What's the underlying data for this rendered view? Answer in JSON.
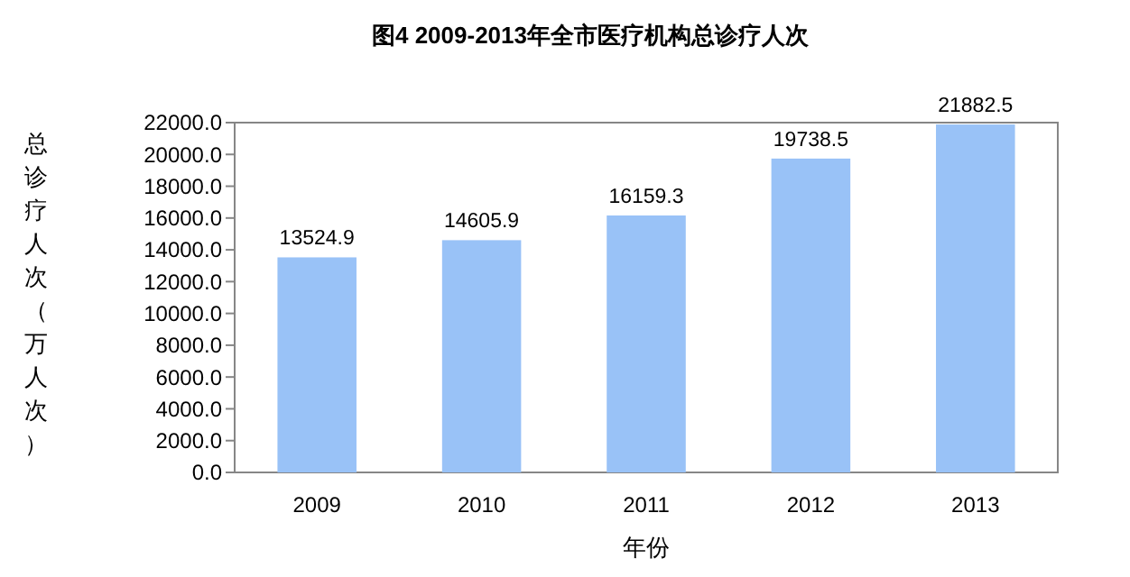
{
  "chart_data": {
    "type": "bar",
    "title": "图4 2009-2013年全市医疗机构总诊疗人次",
    "xlabel": "年份",
    "ylabel": "总诊疗人次（万人次）",
    "categories": [
      "2009",
      "2010",
      "2011",
      "2012",
      "2013"
    ],
    "values": [
      13524.9,
      14605.9,
      16159.3,
      19738.5,
      21882.5
    ],
    "color": "#99c2f7",
    "data_labels": true,
    "ylim": [
      0,
      22000
    ],
    "yticks": [
      {
        "value": 0,
        "label": "0.0"
      },
      {
        "value": 2000,
        "label": "2000.0"
      },
      {
        "value": 4000,
        "label": "4000.0"
      },
      {
        "value": 6000,
        "label": "6000.0"
      },
      {
        "value": 8000,
        "label": "8000.0"
      },
      {
        "value": 10000,
        "label": "10000.0"
      },
      {
        "value": 12000,
        "label": "12000.0"
      },
      {
        "value": 14000,
        "label": "14000.0"
      },
      {
        "value": 16000,
        "label": "16000.0"
      },
      {
        "value": 18000,
        "label": "18000.0"
      },
      {
        "value": 20000,
        "label": "20000.0"
      },
      {
        "value": 22000,
        "label": "22000.0"
      }
    ],
    "grid": false
  }
}
